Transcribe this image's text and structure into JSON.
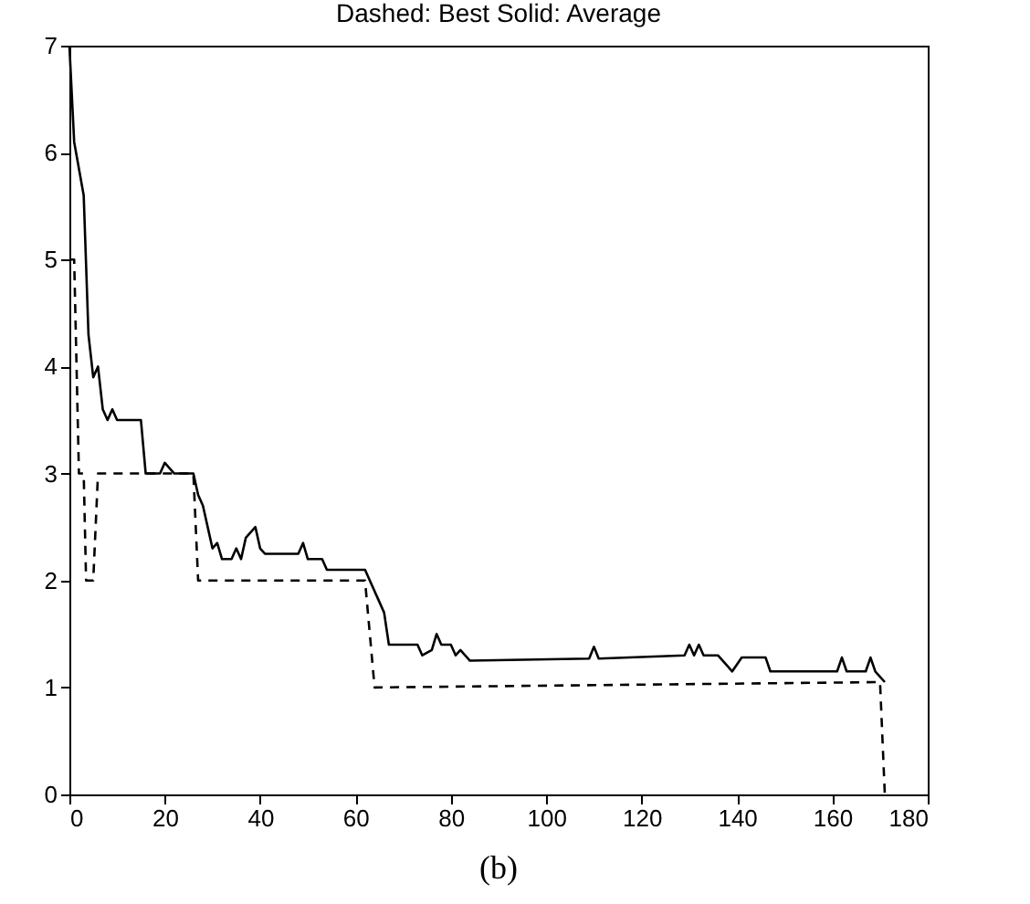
{
  "chart_data": {
    "type": "line",
    "title": "Dashed: Best    Solid: Average",
    "annotations": [
      "(b)"
    ],
    "xlim": [
      0,
      180
    ],
    "ylim": [
      0,
      7
    ],
    "xticks": [
      0,
      20,
      40,
      60,
      80,
      100,
      120,
      140,
      160,
      180
    ],
    "yticks": [
      0,
      1,
      2,
      3,
      4,
      5,
      6,
      7
    ],
    "grid": false,
    "marker": "none",
    "series": [
      {
        "color": "#000000",
        "line_style": "dashed",
        "x": [
          0,
          1,
          2,
          3,
          3.5,
          5,
          6,
          26,
          27,
          62,
          64,
          170,
          171
        ],
        "values": [
          5,
          5,
          3,
          3,
          2,
          2,
          3,
          3,
          2,
          2,
          1,
          1.05,
          0
        ]
      },
      {
        "color": "#000000",
        "line_style": "solid",
        "x": [
          0,
          1,
          3,
          4,
          5,
          6,
          7,
          8,
          9,
          10,
          15,
          16,
          19,
          20,
          22,
          26,
          27,
          28,
          29,
          30,
          31,
          32,
          34,
          35,
          36,
          37,
          39,
          40,
          41,
          48,
          49,
          50,
          53,
          54,
          62,
          63,
          65,
          66,
          67,
          73,
          74,
          76,
          77,
          78,
          80,
          81,
          82,
          84,
          109,
          110,
          111,
          129,
          130,
          131,
          132,
          133,
          136,
          138,
          139,
          141,
          146,
          147,
          161,
          162,
          163,
          167,
          168,
          169,
          171
        ],
        "values": [
          7,
          6.1,
          5.6,
          4.3,
          3.9,
          4.0,
          3.6,
          3.5,
          3.6,
          3.5,
          3.5,
          3.0,
          3.0,
          3.1,
          3.0,
          3.0,
          2.8,
          2.7,
          2.5,
          2.3,
          2.35,
          2.2,
          2.2,
          2.3,
          2.2,
          2.4,
          2.5,
          2.3,
          2.25,
          2.25,
          2.35,
          2.2,
          2.2,
          2.1,
          2.1,
          2.0,
          1.8,
          1.7,
          1.4,
          1.4,
          1.3,
          1.35,
          1.5,
          1.4,
          1.4,
          1.3,
          1.35,
          1.25,
          1.27,
          1.38,
          1.27,
          1.3,
          1.4,
          1.3,
          1.4,
          1.3,
          1.3,
          1.2,
          1.15,
          1.28,
          1.28,
          1.15,
          1.15,
          1.28,
          1.15,
          1.15,
          1.28,
          1.15,
          1.05
        ]
      }
    ]
  }
}
